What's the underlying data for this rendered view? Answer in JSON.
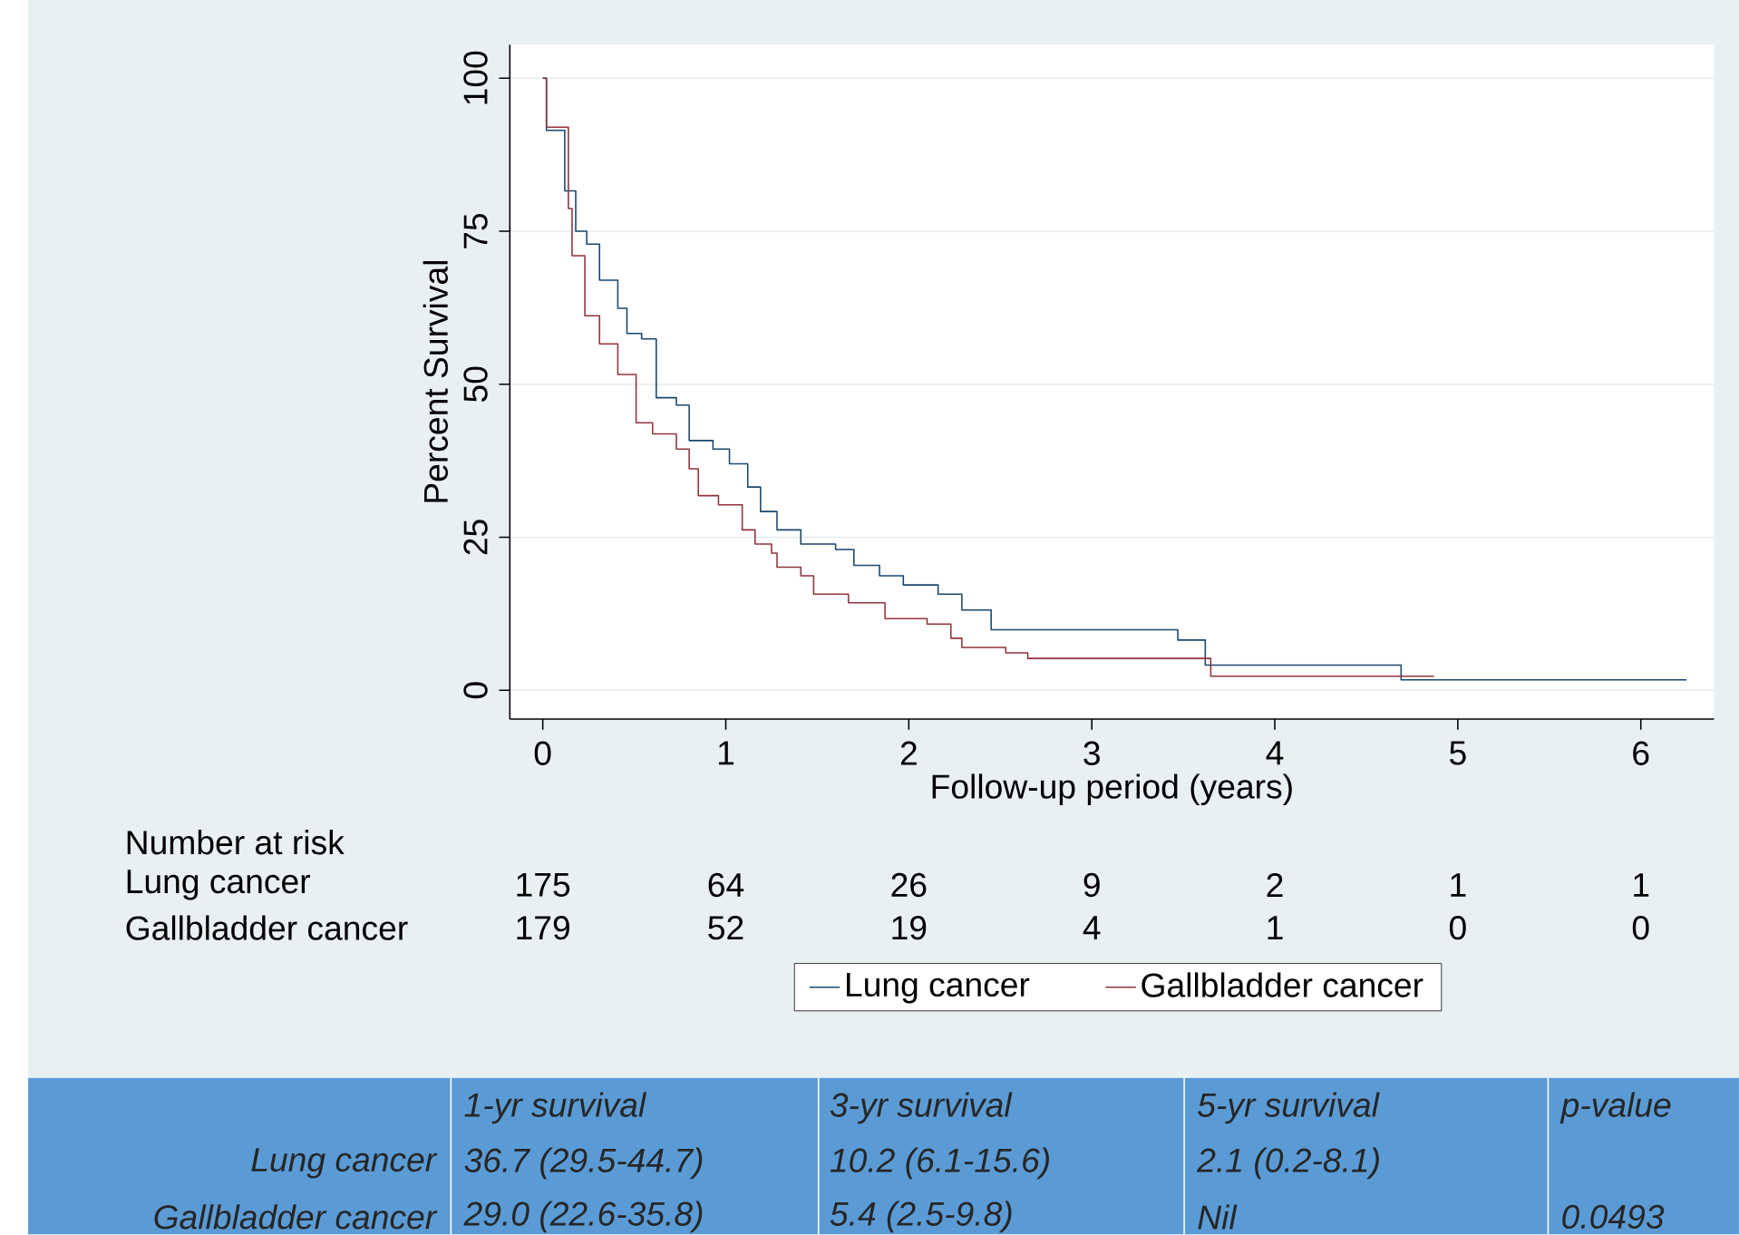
{
  "chart_data": {
    "type": "step",
    "xlabel": "Follow-up period (years)",
    "ylabel": "Percent Survival",
    "xlim": [
      -0.18,
      6.4
    ],
    "ylim": [
      -4.7,
      105.5
    ],
    "xticks": [
      0,
      1,
      2,
      3,
      4,
      5,
      6
    ],
    "yticks": [
      0,
      25,
      50,
      75,
      100
    ],
    "grid": "y",
    "legend": "bottom",
    "series": [
      {
        "name": "Lung cancer",
        "color": "#1a476f",
        "x": [
          0,
          0.02,
          0.12,
          0.18,
          0.24,
          0.31,
          0.41,
          0.46,
          0.54,
          0.62,
          0.73,
          0.8,
          0.93,
          1.02,
          1.12,
          1.19,
          1.28,
          1.41,
          1.6,
          1.7,
          1.84,
          1.97,
          2.16,
          2.29,
          2.45,
          3.47,
          3.62,
          4.69,
          6.25
        ],
        "values": [
          100,
          91.5,
          81.6,
          75,
          72.9,
          67,
          62.4,
          58.3,
          57.4,
          47.8,
          46.6,
          40.8,
          39.4,
          37,
          33.2,
          29.2,
          26.2,
          23.9,
          23,
          20.4,
          18.7,
          17.2,
          15.7,
          13.1,
          9.9,
          8.2,
          4.1,
          1.7,
          1.7
        ]
      },
      {
        "name": "Gallbladder cancer",
        "color": "#90353b",
        "x": [
          0,
          0.02,
          0.14,
          0.16,
          0.23,
          0.31,
          0.41,
          0.51,
          0.6,
          0.73,
          0.8,
          0.85,
          0.96,
          1.09,
          1.16,
          1.25,
          1.28,
          1.41,
          1.48,
          1.67,
          1.87,
          2.1,
          2.23,
          2.29,
          2.53,
          2.65,
          3.65,
          4.87
        ],
        "values": [
          100,
          92,
          78.7,
          71,
          61.2,
          56.6,
          51.6,
          43.7,
          41.9,
          39.4,
          36.2,
          31.8,
          30.3,
          26.2,
          23.9,
          22.4,
          20.1,
          18.7,
          15.7,
          14.3,
          11.7,
          10.8,
          8.5,
          7,
          6.1,
          5.2,
          2.3,
          2.3
        ]
      }
    ],
    "annotations": [
      "Number at risk",
      "Lung cancer",
      "175",
      "64",
      "26",
      "9",
      "2",
      "1",
      "1",
      "Gallbladder cancer",
      "179",
      "52",
      "19",
      "4",
      "1",
      "0",
      "0",
      "1-yr survival",
      "3-yr survival",
      "5-yr survival",
      "p-value",
      "Lung cancer",
      "36.7 (29.5-44.7)",
      "10.2 (6.1-15.6)",
      "2.1 (0.2-8.1)",
      "Gallbladder cancer",
      "29.0 (22.6-35.8)",
      "5.4 (2.5-9.8)",
      "Nil",
      "0.0493"
    ]
  }
}
